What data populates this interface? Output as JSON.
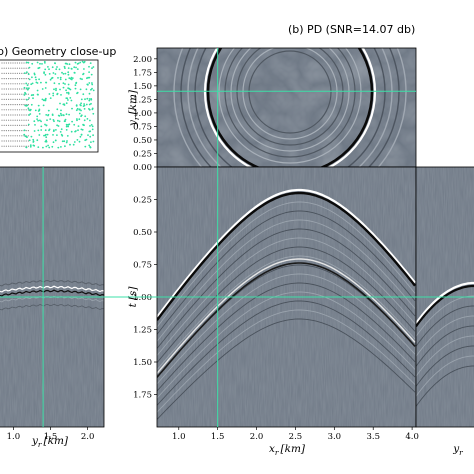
{
  "titles": {
    "left": "b) Geometry close-up",
    "right": "(b) PD (SNR=14.07 db)"
  },
  "labels": {
    "left_x": "y",
    "left_x_sub": "r",
    "left_x_unit": "[km]",
    "main_x": "x",
    "main_x_sub": "r",
    "main_x_unit": "[km]",
    "main_y": "t",
    "main_y_unit": "[s]",
    "top_y": "y",
    "top_y_sub": "r",
    "top_y_unit": "[km]",
    "right_x": "y",
    "right_x_sub": "r"
  },
  "colors": {
    "background": "#6e7885",
    "crosshair": "#3de0a8",
    "geometry_points": "#2ee0a0"
  },
  "chart_data": [
    {
      "type": "heatmap",
      "name": "main-gather",
      "x_ticks": [
        "1.0",
        "1.5",
        "2.0",
        "2.5",
        "3.0",
        "3.5",
        "4.0"
      ],
      "y_ticks": [
        "0.25",
        "0.50",
        "0.75",
        "1.00",
        "1.25",
        "1.50",
        "1.75"
      ],
      "xlim": [
        0.72,
        4.05
      ],
      "ylim": [
        0.0,
        2.0
      ],
      "crosshair": {
        "x": 1.5,
        "y": 1.0
      },
      "apex": {
        "x": 2.55,
        "t": 0.2
      }
    },
    {
      "type": "heatmap",
      "name": "depth-slice",
      "y_ticks": [
        "0.00",
        "0.25",
        "0.50",
        "0.75",
        "1.00",
        "1.25",
        "1.50",
        "1.75",
        "2.00"
      ],
      "ylim": [
        0.0,
        2.2
      ],
      "crosshair": {
        "y": 1.4
      }
    },
    {
      "type": "heatmap",
      "name": "left-gather",
      "x_ticks": [
        "1.0",
        "1.5",
        "2.0"
      ],
      "xlim": [
        0.82,
        2.22
      ],
      "crosshair": {
        "x": 1.4,
        "t": 1.0
      }
    },
    {
      "type": "heatmap",
      "name": "right-gather",
      "crosshair": {
        "t": 1.0
      }
    }
  ]
}
